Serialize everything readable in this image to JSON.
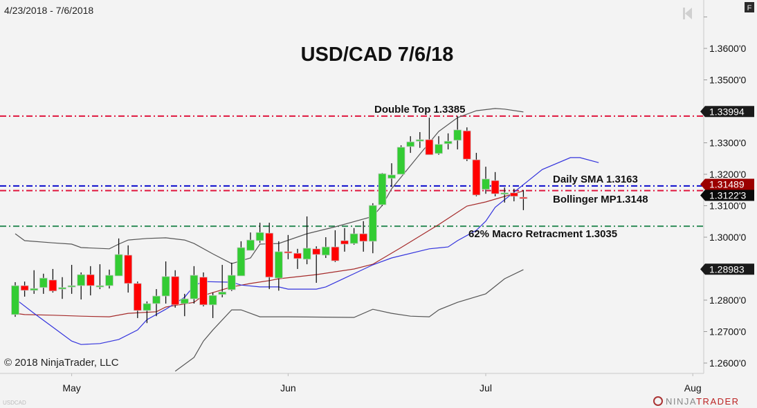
{
  "date_range": "4/23/2018 - 7/6/2018",
  "copyright": "© 2018 NinjaTrader, LLC",
  "instrument": "USDCAD",
  "logo_text": "NINJATRADER",
  "f_button": "F",
  "chart_data": {
    "type": "candlestick",
    "title": "USD/CAD 7/6/18",
    "ylim": [
      1.255,
      1.37
    ],
    "y_ticks": [
      "1.3600'0",
      "1.3500'0",
      "1.3300'0",
      "1.3200'0",
      "1.3100'0",
      "1.3000'0",
      "1.2800'0",
      "1.2700'0",
      "1.2600'0"
    ],
    "y_tick_values": [
      1.36,
      1.35,
      1.33,
      1.32,
      1.31,
      1.3,
      1.28,
      1.27,
      1.26
    ],
    "x_ticks": [
      {
        "label": "May",
        "date": "2018-05-01"
      },
      {
        "label": "Jun",
        "date": "2018-06-01"
      },
      {
        "label": "Jul",
        "date": "2018-07-02"
      },
      {
        "label": "Aug",
        "date": "2018-08-01"
      }
    ],
    "colors": {
      "up": "#33cc33",
      "down": "#ff0000",
      "background": "#f3f3f3",
      "upper_band": "#555555",
      "lower_band": "#555555",
      "middle_band": "#a52a2a",
      "sma": "#3333dd"
    },
    "candles": [
      {
        "d": "2018-04-23",
        "o": 1.2754,
        "h": 1.2857,
        "l": 1.2747,
        "c": 1.2846
      },
      {
        "d": "2018-04-24",
        "o": 1.2846,
        "h": 1.2859,
        "l": 1.2811,
        "c": 1.2831
      },
      {
        "d": "2018-04-25",
        "o": 1.2831,
        "h": 1.2895,
        "l": 1.282,
        "c": 1.2837
      },
      {
        "d": "2018-04-26",
        "o": 1.284,
        "h": 1.2884,
        "l": 1.282,
        "c": 1.287
      },
      {
        "d": "2018-04-27",
        "o": 1.2864,
        "h": 1.2899,
        "l": 1.2824,
        "c": 1.2829
      },
      {
        "d": "2018-04-30",
        "o": 1.2835,
        "h": 1.2873,
        "l": 1.2804,
        "c": 1.284
      },
      {
        "d": "2018-05-01",
        "o": 1.2842,
        "h": 1.2912,
        "l": 1.282,
        "c": 1.2846
      },
      {
        "d": "2018-05-02",
        "o": 1.2846,
        "h": 1.2888,
        "l": 1.2802,
        "c": 1.2881
      },
      {
        "d": "2018-05-03",
        "o": 1.2881,
        "h": 1.2908,
        "l": 1.2815,
        "c": 1.2846
      },
      {
        "d": "2018-05-04",
        "o": 1.2844,
        "h": 1.2914,
        "l": 1.2835,
        "c": 1.2846
      },
      {
        "d": "2018-05-07",
        "o": 1.2846,
        "h": 1.2897,
        "l": 1.2837,
        "c": 1.2879
      },
      {
        "d": "2018-05-08",
        "o": 1.2877,
        "h": 1.2996,
        "l": 1.2877,
        "c": 1.2945
      },
      {
        "d": "2018-05-09",
        "o": 1.2943,
        "h": 1.2974,
        "l": 1.2824,
        "c": 1.2853
      },
      {
        "d": "2018-05-10",
        "o": 1.2853,
        "h": 1.2859,
        "l": 1.2743,
        "c": 1.2767
      },
      {
        "d": "2018-05-11",
        "o": 1.2767,
        "h": 1.2796,
        "l": 1.2727,
        "c": 1.2789
      },
      {
        "d": "2018-05-14",
        "o": 1.2789,
        "h": 1.2835,
        "l": 1.2749,
        "c": 1.2813
      },
      {
        "d": "2018-05-15",
        "o": 1.2813,
        "h": 1.2923,
        "l": 1.2789,
        "c": 1.2875
      },
      {
        "d": "2018-05-16",
        "o": 1.2875,
        "h": 1.2895,
        "l": 1.2776,
        "c": 1.2785
      },
      {
        "d": "2018-05-17",
        "o": 1.2789,
        "h": 1.282,
        "l": 1.2749,
        "c": 1.2804
      },
      {
        "d": "2018-05-18",
        "o": 1.2804,
        "h": 1.2908,
        "l": 1.2789,
        "c": 1.2879
      },
      {
        "d": "2018-05-21",
        "o": 1.2873,
        "h": 1.2888,
        "l": 1.278,
        "c": 1.2785
      },
      {
        "d": "2018-05-22",
        "o": 1.2785,
        "h": 1.2824,
        "l": 1.2743,
        "c": 1.2815
      },
      {
        "d": "2018-05-23",
        "o": 1.2818,
        "h": 1.2912,
        "l": 1.2809,
        "c": 1.2826
      },
      {
        "d": "2018-05-24",
        "o": 1.2833,
        "h": 1.2919,
        "l": 1.2829,
        "c": 1.2879
      },
      {
        "d": "2018-05-25",
        "o": 1.2877,
        "h": 1.2987,
        "l": 1.2877,
        "c": 1.2967
      },
      {
        "d": "2018-05-28",
        "o": 1.2958,
        "h": 1.3015,
        "l": 1.2958,
        "c": 1.2991
      },
      {
        "d": "2018-05-29",
        "o": 1.2989,
        "h": 1.3046,
        "l": 1.2982,
        "c": 1.3015
      },
      {
        "d": "2018-05-30",
        "o": 1.3013,
        "h": 1.3046,
        "l": 1.2835,
        "c": 1.2873
      },
      {
        "d": "2018-05-31",
        "o": 1.287,
        "h": 1.2987,
        "l": 1.283,
        "c": 1.2954
      },
      {
        "d": "2018-06-01",
        "o": 1.2954,
        "h": 1.3007,
        "l": 1.293,
        "c": 1.2952
      },
      {
        "d": "2018-06-04",
        "o": 1.2949,
        "h": 1.2963,
        "l": 1.2899,
        "c": 1.2932
      },
      {
        "d": "2018-06-05",
        "o": 1.293,
        "h": 1.3066,
        "l": 1.2914,
        "c": 1.2965
      },
      {
        "d": "2018-06-06",
        "o": 1.2963,
        "h": 1.2971,
        "l": 1.2855,
        "c": 1.2945
      },
      {
        "d": "2018-06-07",
        "o": 1.2943,
        "h": 1.3,
        "l": 1.2934,
        "c": 1.2969
      },
      {
        "d": "2018-06-08",
        "o": 1.2969,
        "h": 1.3022,
        "l": 1.2921,
        "c": 1.2925
      },
      {
        "d": "2018-06-11",
        "o": 1.2989,
        "h": 1.3029,
        "l": 1.2954,
        "c": 1.2978
      },
      {
        "d": "2018-06-12",
        "o": 1.298,
        "h": 1.3029,
        "l": 1.2976,
        "c": 1.3011
      },
      {
        "d": "2018-06-13",
        "o": 1.3011,
        "h": 1.3051,
        "l": 1.2954,
        "c": 1.2987
      },
      {
        "d": "2018-06-14",
        "o": 1.2987,
        "h": 1.3108,
        "l": 1.2949,
        "c": 1.3101
      },
      {
        "d": "2018-06-15",
        "o": 1.3103,
        "h": 1.3204,
        "l": 1.3099,
        "c": 1.3202
      },
      {
        "d": "2018-06-18",
        "o": 1.3187,
        "h": 1.3235,
        "l": 1.316,
        "c": 1.3198
      },
      {
        "d": "2018-06-19",
        "o": 1.32,
        "h": 1.3292,
        "l": 1.32,
        "c": 1.3286
      },
      {
        "d": "2018-06-20",
        "o": 1.3288,
        "h": 1.3321,
        "l": 1.3268,
        "c": 1.3303
      },
      {
        "d": "2018-06-21",
        "o": 1.3305,
        "h": 1.3334,
        "l": 1.3284,
        "c": 1.331
      },
      {
        "d": "2018-06-22",
        "o": 1.331,
        "h": 1.338,
        "l": 1.3262,
        "c": 1.3262
      },
      {
        "d": "2018-06-25",
        "o": 1.3266,
        "h": 1.3321,
        "l": 1.3262,
        "c": 1.3295
      },
      {
        "d": "2018-06-26",
        "o": 1.3297,
        "h": 1.333,
        "l": 1.3279,
        "c": 1.3305
      },
      {
        "d": "2018-06-27",
        "o": 1.3308,
        "h": 1.3385,
        "l": 1.3279,
        "c": 1.3341
      },
      {
        "d": "2018-06-28",
        "o": 1.3338,
        "h": 1.3349,
        "l": 1.3242,
        "c": 1.3248
      },
      {
        "d": "2018-06-29",
        "o": 1.3246,
        "h": 1.3268,
        "l": 1.313,
        "c": 1.3134
      },
      {
        "d": "2018-07-02",
        "o": 1.3152,
        "h": 1.3224,
        "l": 1.3138,
        "c": 1.3185
      },
      {
        "d": "2018-07-03",
        "o": 1.318,
        "h": 1.3207,
        "l": 1.313,
        "c": 1.3138
      },
      {
        "d": "2018-07-04",
        "o": 1.3138,
        "h": 1.3158,
        "l": 1.311,
        "c": 1.3141
      },
      {
        "d": "2018-07-05",
        "o": 1.3141,
        "h": 1.3154,
        "l": 1.3114,
        "c": 1.313
      },
      {
        "d": "2018-07-06",
        "o": 1.3127,
        "h": 1.315,
        "l": 1.3086,
        "c": 1.3123
      }
    ],
    "indicators": [
      {
        "id": "upper_band",
        "points": [
          [
            "2018-04-23",
            1.3011
          ],
          [
            "2018-04-24",
            1.2989
          ],
          [
            "2018-04-27",
            1.2982
          ],
          [
            "2018-05-01",
            1.2978
          ],
          [
            "2018-05-02",
            1.2967
          ],
          [
            "2018-05-07",
            1.2963
          ],
          [
            "2018-05-08",
            1.2978
          ],
          [
            "2018-05-09",
            1.2991
          ],
          [
            "2018-05-11",
            1.2996
          ],
          [
            "2018-05-15",
            1.2998
          ],
          [
            "2018-05-17",
            1.2991
          ],
          [
            "2018-05-18",
            1.298
          ],
          [
            "2018-05-22",
            1.2947
          ],
          [
            "2018-05-24",
            1.2916
          ],
          [
            "2018-05-28",
            1.2934
          ],
          [
            "2018-05-29",
            1.2978
          ],
          [
            "2018-05-31",
            1.298
          ],
          [
            "2018-06-05",
            1.3011
          ],
          [
            "2018-06-08",
            1.3033
          ],
          [
            "2018-06-14",
            1.3066
          ],
          [
            "2018-06-15",
            1.3101
          ],
          [
            "2018-06-18",
            1.3154
          ],
          [
            "2018-06-21",
            1.3264
          ],
          [
            "2018-06-25",
            1.3336
          ],
          [
            "2018-06-27",
            1.338
          ],
          [
            "2018-06-29",
            1.3402
          ],
          [
            "2018-07-03",
            1.3409
          ],
          [
            "2018-07-04",
            1.3407
          ],
          [
            "2018-07-06",
            1.3398
          ]
        ]
      },
      {
        "id": "lower_band",
        "points": [
          [
            "2018-05-16",
            1.2574
          ],
          [
            "2018-05-18",
            1.2618
          ],
          [
            "2018-05-21",
            1.267
          ],
          [
            "2018-05-22",
            1.2705
          ],
          [
            "2018-05-24",
            1.2769
          ],
          [
            "2018-05-25",
            1.2769
          ],
          [
            "2018-05-29",
            1.2747
          ],
          [
            "2018-06-01",
            1.2747
          ],
          [
            "2018-06-12",
            1.2745
          ],
          [
            "2018-06-14",
            1.2771
          ],
          [
            "2018-06-18",
            1.2758
          ],
          [
            "2018-06-20",
            1.2749
          ],
          [
            "2018-06-22",
            1.2747
          ],
          [
            "2018-06-25",
            1.2769
          ],
          [
            "2018-06-27",
            1.2793
          ],
          [
            "2018-07-02",
            1.282
          ],
          [
            "2018-07-04",
            1.2868
          ],
          [
            "2018-07-06",
            1.2897
          ]
        ]
      },
      {
        "id": "middle_band",
        "points": [
          [
            "2018-04-23",
            1.2758
          ],
          [
            "2018-04-24",
            1.2754
          ],
          [
            "2018-04-27",
            1.2752
          ],
          [
            "2018-05-02",
            1.2749
          ],
          [
            "2018-05-07",
            1.2747
          ],
          [
            "2018-05-09",
            1.2758
          ],
          [
            "2018-05-14",
            1.2763
          ],
          [
            "2018-05-15",
            1.2778
          ],
          [
            "2018-05-18",
            1.2793
          ],
          [
            "2018-05-21",
            1.2815
          ],
          [
            "2018-05-24",
            1.2842
          ],
          [
            "2018-05-28",
            1.2853
          ],
          [
            "2018-05-30",
            1.2862
          ],
          [
            "2018-05-31",
            1.2868
          ],
          [
            "2018-06-06",
            1.2881
          ],
          [
            "2018-06-12",
            1.2899
          ],
          [
            "2018-06-14",
            1.2914
          ],
          [
            "2018-06-19",
            1.2967
          ],
          [
            "2018-06-25",
            1.304
          ],
          [
            "2018-06-28",
            1.3099
          ],
          [
            "2018-07-02",
            1.3112
          ],
          [
            "2018-07-06",
            1.3147
          ]
        ]
      },
      {
        "id": "sma",
        "points": [
          [
            "2018-04-23",
            1.2804
          ],
          [
            "2018-04-25",
            1.2758
          ],
          [
            "2018-04-27",
            1.2714
          ],
          [
            "2018-05-01",
            1.267
          ],
          [
            "2018-05-02",
            1.2659
          ],
          [
            "2018-05-04",
            1.2662
          ],
          [
            "2018-05-08",
            1.2675
          ],
          [
            "2018-05-10",
            1.2705
          ],
          [
            "2018-05-11",
            1.2738
          ],
          [
            "2018-05-15",
            1.2771
          ],
          [
            "2018-05-17",
            1.2809
          ],
          [
            "2018-05-18",
            1.2846
          ],
          [
            "2018-05-21",
            1.2859
          ],
          [
            "2018-05-24",
            1.2857
          ],
          [
            "2018-05-25",
            1.2848
          ],
          [
            "2018-05-29",
            1.2842
          ],
          [
            "2018-05-31",
            1.2842
          ],
          [
            "2018-06-01",
            1.2835
          ],
          [
            "2018-06-06",
            1.2835
          ],
          [
            "2018-06-07",
            1.2842
          ],
          [
            "2018-06-11",
            1.287
          ],
          [
            "2018-06-14",
            1.2912
          ],
          [
            "2018-06-18",
            1.2934
          ],
          [
            "2018-06-22",
            1.2963
          ],
          [
            "2018-06-26",
            1.2969
          ],
          [
            "2018-06-27",
            1.2989
          ],
          [
            "2018-06-29",
            1.3022
          ],
          [
            "2018-07-02",
            1.3051
          ],
          [
            "2018-07-03",
            1.3095
          ],
          [
            "2018-07-06",
            1.3167
          ],
          [
            "2018-07-10",
            1.3215
          ],
          [
            "2018-07-13",
            1.3253
          ],
          [
            "2018-07-16",
            1.3253
          ],
          [
            "2018-07-18",
            1.3237
          ]
        ]
      }
    ],
    "horizontal_lines": [
      {
        "price": 1.3385,
        "color": "#e0143c",
        "label": "Double Top 1.3385",
        "label_date": "2018-06-05",
        "label_align": "start"
      },
      {
        "price": 1.3163,
        "color": "#0a0acc",
        "label": "Daily SMA 1.3163",
        "label_date": "2018-07-30",
        "label_align": "start"
      },
      {
        "price": 1.3148,
        "color": "#e0143c",
        "label": "Bollinger MP1.3148",
        "label_date": "2018-07-30",
        "label_align": "start"
      },
      {
        "price": 1.3035,
        "color": "#2e8b57",
        "label": "62% Macro Retracment 1.3035",
        "label_date": "2018-06-28",
        "label_align": "start"
      }
    ],
    "price_tags": [
      {
        "text": "1.33994",
        "price": 1.33994,
        "bg": "#1a1a1a"
      },
      {
        "text": "1.31489",
        "price": 1.31489,
        "bg": "#9b0000"
      },
      {
        "text": "1.3122'3",
        "price": 1.3122,
        "bg": "#0a0a0a"
      },
      {
        "text": "1.28983",
        "price": 1.28983,
        "bg": "#1a1a1a"
      }
    ]
  }
}
